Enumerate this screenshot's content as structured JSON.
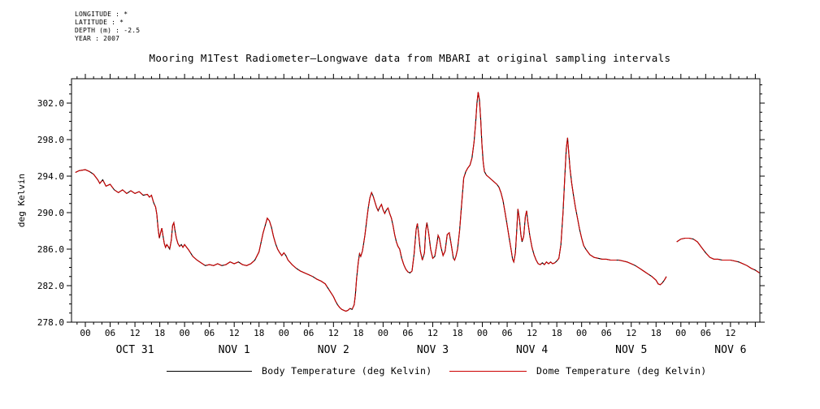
{
  "title": "Mooring M1Test Radiometer—Longwave data from MBARI at original sampling intervals",
  "metadata": {
    "longitude": "LONGITUDE : *",
    "latitude": "LATITUDE : *",
    "depth": "DEPTH (m) : -2.5",
    "year": "YEAR : 2007"
  },
  "legend": {
    "body": "Body Temperature (deg Kelvin)",
    "dome": "Dome Temperature (deg Kelvin)",
    "body_color": "#000000",
    "dome_color": "#cc0000"
  },
  "chart_data": {
    "type": "line",
    "title": "Mooring M1Test Radiometer—Longwave data from MBARI at original sampling intervals",
    "xlabel": "",
    "ylabel": "deg Kelvin",
    "x_unit": "hours since 2007-10-31 00:00",
    "xlim": [
      -3.34,
      163.1
    ],
    "ylim": [
      278.0,
      304.67
    ],
    "grid": false,
    "y_major_ticks": [
      278,
      282,
      286,
      290,
      294,
      298,
      302
    ],
    "y_minor_step": 1,
    "y_tick_label_format": "fixed1",
    "x_major_step": 6,
    "x_minor_step": 2,
    "x_label_range": [
      0,
      156
    ],
    "x_tick_labels_cycle": [
      "00",
      "06",
      "12",
      "18"
    ],
    "day_labels": [
      {
        "label": "OCT 31",
        "t": 12
      },
      {
        "label": "NOV 1",
        "t": 36
      },
      {
        "label": "NOV 2",
        "t": 60
      },
      {
        "label": "NOV 3",
        "t": 84
      },
      {
        "label": "NOV 4",
        "t": 108
      },
      {
        "label": "NOV 5",
        "t": 132
      },
      {
        "label": "NOV 6",
        "t": 156
      }
    ],
    "series": [
      {
        "name": "Body Temperature (deg Kelvin)",
        "color": "#000000",
        "dash": null
      },
      {
        "name": "Dome Temperature (deg Kelvin)",
        "color": "#cc0000",
        "dash": "20 2.5"
      }
    ],
    "note": "Body and Dome traces coincide; both drawn from points_segments (t hours, deg K). Gap in data between t=140.5 and t=143.",
    "points_segments": [
      [
        [
          -2.4,
          294.4
        ],
        [
          -1.5,
          294.6
        ],
        [
          0,
          294.7
        ],
        [
          1,
          294.5
        ],
        [
          2,
          294.2
        ],
        [
          3,
          293.6
        ],
        [
          3.5,
          293.2
        ],
        [
          4.2,
          293.6
        ],
        [
          5,
          292.9
        ],
        [
          6,
          293.1
        ],
        [
          7,
          292.5
        ],
        [
          8,
          292.2
        ],
        [
          9,
          292.5
        ],
        [
          10,
          292.1
        ],
        [
          11,
          292.4
        ],
        [
          12,
          292.1
        ],
        [
          13,
          292.3
        ],
        [
          14,
          291.9
        ],
        [
          15,
          292.0
        ],
        [
          15.5,
          291.7
        ],
        [
          16,
          291.9
        ],
        [
          16.5,
          291.1
        ],
        [
          17,
          290.6
        ],
        [
          17.3,
          289.8
        ],
        [
          17.6,
          288.2
        ],
        [
          17.9,
          287.2
        ],
        [
          18.2,
          287.8
        ],
        [
          18.5,
          288.3
        ],
        [
          18.8,
          287.4
        ],
        [
          19.1,
          286.6
        ],
        [
          19.4,
          286.2
        ],
        [
          19.7,
          286.5
        ],
        [
          20,
          286.3
        ],
        [
          20.4,
          286.0
        ],
        [
          20.8,
          287.0
        ],
        [
          21.1,
          288.6
        ],
        [
          21.4,
          288.9
        ],
        [
          21.7,
          288.0
        ],
        [
          22,
          287.2
        ],
        [
          22.4,
          286.6
        ],
        [
          22.8,
          286.3
        ],
        [
          23.2,
          286.5
        ],
        [
          23.6,
          286.2
        ],
        [
          24,
          286.5
        ],
        [
          25,
          285.9
        ],
        [
          26,
          285.2
        ],
        [
          27,
          284.8
        ],
        [
          28,
          284.5
        ],
        [
          29,
          284.2
        ],
        [
          30,
          284.3
        ],
        [
          31,
          284.2
        ],
        [
          32,
          284.4
        ],
        [
          33,
          284.2
        ],
        [
          34,
          284.3
        ],
        [
          35,
          284.6
        ],
        [
          36,
          284.4
        ],
        [
          37,
          284.6
        ],
        [
          38,
          284.3
        ],
        [
          39,
          284.2
        ],
        [
          40,
          284.4
        ],
        [
          41,
          284.8
        ],
        [
          42,
          285.7
        ],
        [
          43,
          287.8
        ],
        [
          44,
          289.4
        ],
        [
          44.5,
          289.1
        ],
        [
          45,
          288.4
        ],
        [
          45.5,
          287.4
        ],
        [
          46,
          286.6
        ],
        [
          46.5,
          286.0
        ],
        [
          47,
          285.6
        ],
        [
          47.5,
          285.3
        ],
        [
          48,
          285.6
        ],
        [
          48.5,
          285.3
        ],
        [
          49,
          284.8
        ],
        [
          50,
          284.3
        ],
        [
          51,
          283.9
        ],
        [
          52,
          283.6
        ],
        [
          53,
          283.4
        ],
        [
          54,
          283.2
        ],
        [
          55,
          283.0
        ],
        [
          56,
          282.7
        ],
        [
          57,
          282.5
        ],
        [
          58,
          282.2
        ],
        [
          59,
          281.5
        ],
        [
          60,
          280.8
        ],
        [
          60.5,
          280.3
        ],
        [
          61,
          279.9
        ],
        [
          61.5,
          279.6
        ],
        [
          62,
          279.4
        ],
        [
          63,
          279.2
        ],
        [
          63.5,
          279.3
        ],
        [
          64,
          279.5
        ],
        [
          64.5,
          279.4
        ],
        [
          65,
          279.9
        ],
        [
          65.3,
          281.0
        ],
        [
          65.6,
          282.8
        ],
        [
          66,
          284.6
        ],
        [
          66.3,
          285.5
        ],
        [
          66.6,
          285.2
        ],
        [
          67,
          285.8
        ],
        [
          67.6,
          287.5
        ],
        [
          68,
          289.0
        ],
        [
          68.4,
          290.5
        ],
        [
          68.8,
          291.6
        ],
        [
          69.2,
          292.2
        ],
        [
          69.6,
          291.8
        ],
        [
          70,
          291.2
        ],
        [
          70.4,
          290.6
        ],
        [
          70.8,
          290.2
        ],
        [
          71.2,
          290.6
        ],
        [
          71.6,
          290.9
        ],
        [
          72,
          290.3
        ],
        [
          72.4,
          289.9
        ],
        [
          72.8,
          290.3
        ],
        [
          73.2,
          290.5
        ],
        [
          73.6,
          289.9
        ],
        [
          74,
          289.4
        ],
        [
          74.4,
          288.6
        ],
        [
          74.8,
          287.6
        ],
        [
          75.2,
          286.8
        ],
        [
          75.6,
          286.3
        ],
        [
          76,
          286.0
        ],
        [
          76.5,
          285.0
        ],
        [
          77,
          284.3
        ],
        [
          77.5,
          283.8
        ],
        [
          78,
          283.5
        ],
        [
          78.5,
          283.4
        ],
        [
          79,
          283.6
        ],
        [
          79.5,
          285.5
        ],
        [
          80,
          288.2
        ],
        [
          80.3,
          288.8
        ],
        [
          80.6,
          287.6
        ],
        [
          81,
          285.8
        ],
        [
          81.5,
          284.8
        ],
        [
          82,
          285.6
        ],
        [
          82.3,
          288.0
        ],
        [
          82.6,
          288.9
        ],
        [
          83,
          287.8
        ],
        [
          83.5,
          286.0
        ],
        [
          84,
          285.0
        ],
        [
          84.5,
          285.2
        ],
        [
          85,
          286.6
        ],
        [
          85.3,
          287.5
        ],
        [
          85.6,
          287.2
        ],
        [
          86,
          286.2
        ],
        [
          86.5,
          285.3
        ],
        [
          87,
          285.8
        ],
        [
          87.5,
          287.6
        ],
        [
          88,
          287.8
        ],
        [
          88.5,
          286.4
        ],
        [
          89,
          285.0
        ],
        [
          89.3,
          284.8
        ],
        [
          89.6,
          285.2
        ],
        [
          90,
          286.0
        ],
        [
          90.5,
          288.0
        ],
        [
          91,
          291.0
        ],
        [
          91.5,
          293.8
        ],
        [
          92,
          294.5
        ],
        [
          92.5,
          294.9
        ],
        [
          93,
          295.2
        ],
        [
          93.5,
          296.0
        ],
        [
          94,
          297.8
        ],
        [
          94.4,
          300.0
        ],
        [
          94.7,
          302.0
        ],
        [
          95,
          303.2
        ],
        [
          95.3,
          302.3
        ],
        [
          95.6,
          300.2
        ],
        [
          95.9,
          297.5
        ],
        [
          96.2,
          295.5
        ],
        [
          96.5,
          294.5
        ],
        [
          97,
          294.1
        ],
        [
          97.5,
          293.9
        ],
        [
          98,
          293.7
        ],
        [
          98.5,
          293.5
        ],
        [
          99,
          293.3
        ],
        [
          99.5,
          293.1
        ],
        [
          100,
          292.8
        ],
        [
          100.5,
          292.2
        ],
        [
          101,
          291.3
        ],
        [
          101.5,
          290.0
        ],
        [
          102,
          288.6
        ],
        [
          102.5,
          287.2
        ],
        [
          103,
          285.8
        ],
        [
          103.3,
          284.9
        ],
        [
          103.6,
          284.6
        ],
        [
          104,
          285.6
        ],
        [
          104.3,
          288.0
        ],
        [
          104.6,
          290.4
        ],
        [
          105,
          289.2
        ],
        [
          105.3,
          287.6
        ],
        [
          105.6,
          286.8
        ],
        [
          106,
          287.4
        ],
        [
          106.4,
          289.6
        ],
        [
          106.7,
          290.2
        ],
        [
          107,
          289.0
        ],
        [
          107.5,
          287.4
        ],
        [
          108,
          286.2
        ],
        [
          108.5,
          285.4
        ],
        [
          109,
          284.8
        ],
        [
          109.5,
          284.4
        ],
        [
          110,
          284.3
        ],
        [
          110.5,
          284.5
        ],
        [
          111,
          284.3
        ],
        [
          111.5,
          284.6
        ],
        [
          112,
          284.4
        ],
        [
          112.5,
          284.6
        ],
        [
          113,
          284.4
        ],
        [
          113.5,
          284.5
        ],
        [
          114,
          284.7
        ],
        [
          114.5,
          285.0
        ],
        [
          115,
          286.5
        ],
        [
          115.5,
          290.0
        ],
        [
          116,
          294.5
        ],
        [
          116.3,
          297.0
        ],
        [
          116.6,
          298.2
        ],
        [
          116.9,
          296.5
        ],
        [
          117.2,
          294.8
        ],
        [
          117.6,
          293.2
        ],
        [
          118,
          292.0
        ],
        [
          118.5,
          290.6
        ],
        [
          119,
          289.4
        ],
        [
          119.5,
          288.2
        ],
        [
          120,
          287.2
        ],
        [
          120.5,
          286.4
        ],
        [
          121,
          286.0
        ],
        [
          121.5,
          285.7
        ],
        [
          122,
          285.4
        ],
        [
          123,
          285.1
        ],
        [
          124,
          285.0
        ],
        [
          125,
          284.9
        ],
        [
          126,
          284.9
        ],
        [
          127,
          284.8
        ],
        [
          128,
          284.8
        ],
        [
          129,
          284.8
        ],
        [
          130,
          284.7
        ],
        [
          131,
          284.6
        ],
        [
          132,
          284.4
        ],
        [
          133,
          284.2
        ],
        [
          134,
          283.9
        ],
        [
          135,
          283.6
        ],
        [
          136,
          283.3
        ],
        [
          137,
          283.0
        ],
        [
          138,
          282.6
        ],
        [
          138.5,
          282.2
        ],
        [
          139,
          282.1
        ],
        [
          139.5,
          282.3
        ],
        [
          140,
          282.6
        ],
        [
          140.5,
          283.0
        ]
      ],
      [
        [
          143,
          286.8
        ],
        [
          144,
          287.1
        ],
        [
          145,
          287.2
        ],
        [
          146,
          287.2
        ],
        [
          147,
          287.1
        ],
        [
          148,
          286.8
        ],
        [
          149,
          286.2
        ],
        [
          150,
          285.6
        ],
        [
          151,
          285.1
        ],
        [
          152,
          284.9
        ],
        [
          153,
          284.9
        ],
        [
          154,
          284.8
        ],
        [
          155,
          284.8
        ],
        [
          156,
          284.8
        ],
        [
          157,
          284.7
        ],
        [
          158,
          284.6
        ],
        [
          159,
          284.4
        ],
        [
          160,
          284.2
        ],
        [
          161,
          283.9
        ],
        [
          162,
          283.7
        ],
        [
          163,
          283.4
        ]
      ]
    ]
  }
}
